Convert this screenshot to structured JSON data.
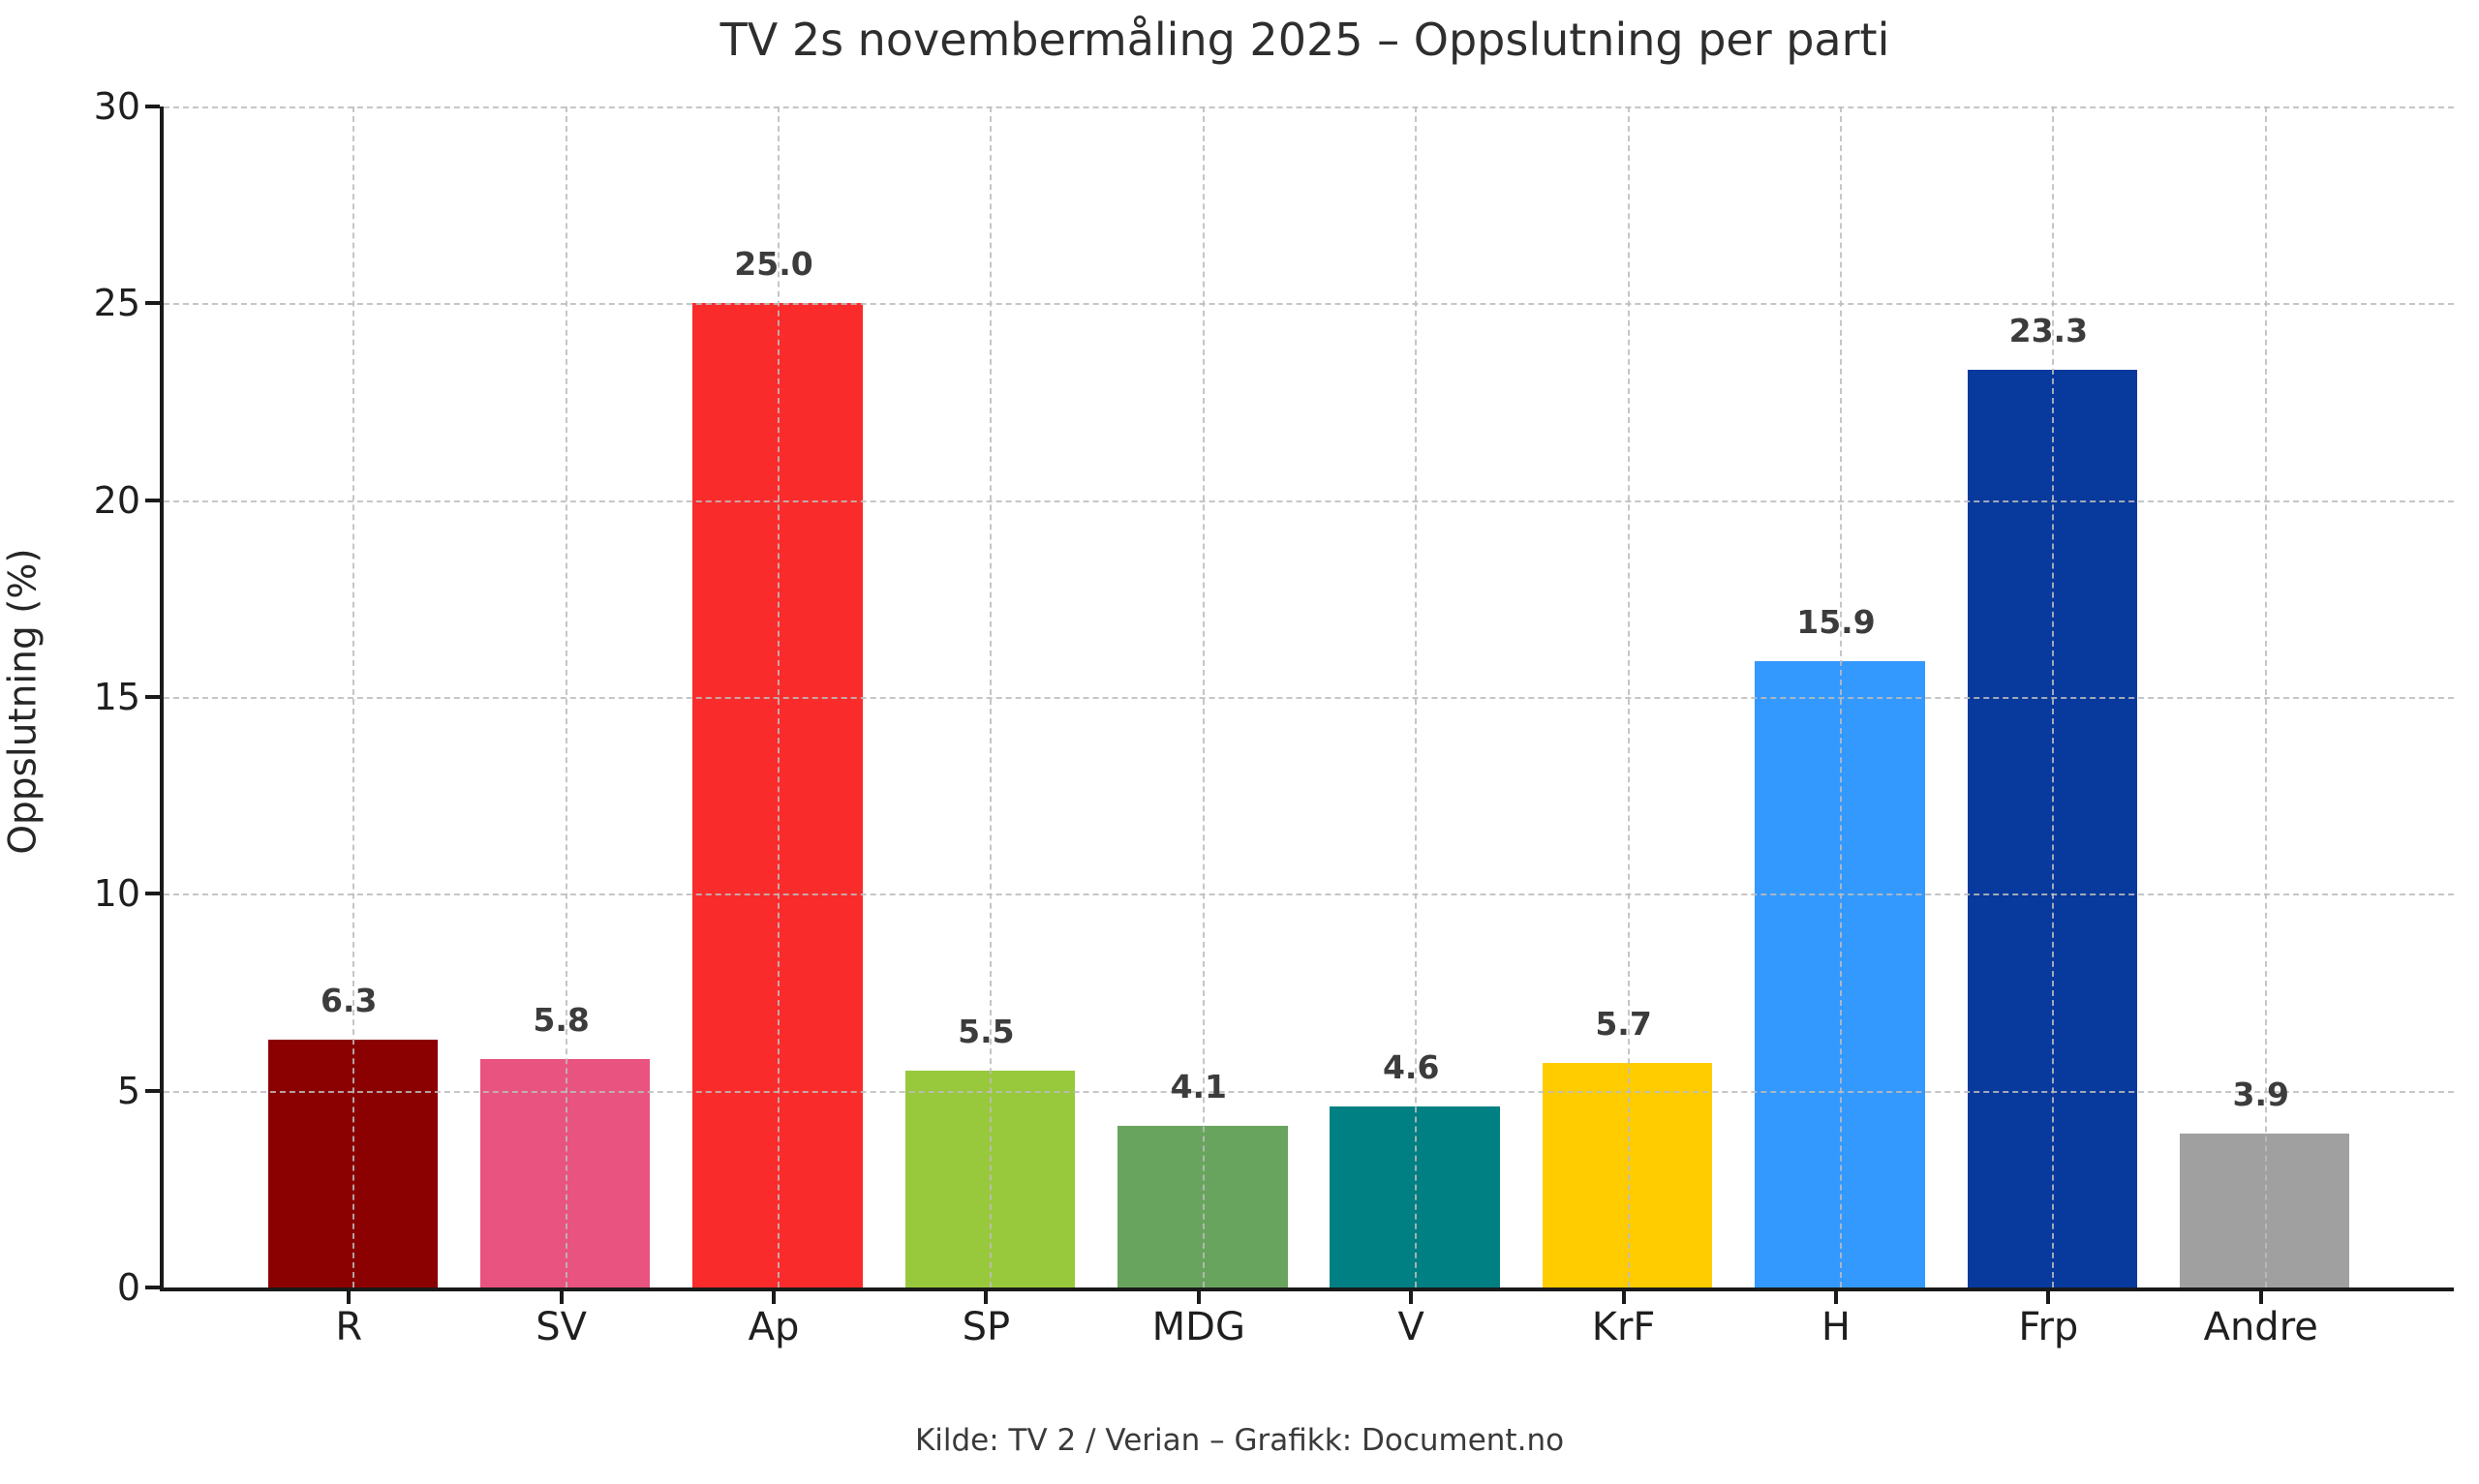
{
  "chart_data": {
    "type": "bar",
    "title": "TV 2s novembermåling 2025 – Oppslutning per parti",
    "xlabel": "",
    "ylabel": "Oppslutning (%)",
    "categories": [
      "R",
      "SV",
      "Ap",
      "SP",
      "MDG",
      "V",
      "KrF",
      "H",
      "Frp",
      "Andre"
    ],
    "values": [
      6.3,
      5.8,
      25.0,
      5.5,
      4.1,
      4.6,
      5.7,
      15.9,
      23.3,
      3.9
    ],
    "value_labels": [
      "6.3",
      "5.8",
      "25.0",
      "5.5",
      "4.1",
      "4.6",
      "5.7",
      "15.9",
      "23.3",
      "3.9"
    ],
    "bar_colors": [
      "#8B0000",
      "#E8537F",
      "#FA2B2B",
      "#98C93C",
      "#69A45E",
      "#008083",
      "#FFCC00",
      "#3399FF",
      "#08399C",
      "#A0A0A0"
    ],
    "ylim": [
      0,
      30
    ],
    "yticks": [
      0,
      5,
      10,
      15,
      20,
      25,
      30
    ],
    "grid": "dashed gray gridlines, horizontal at each y tick and vertical at each category center, drawn above bars",
    "legend": "none",
    "source_note": "Kilde: TV 2 / Verian – Grafikk: Document.no"
  }
}
